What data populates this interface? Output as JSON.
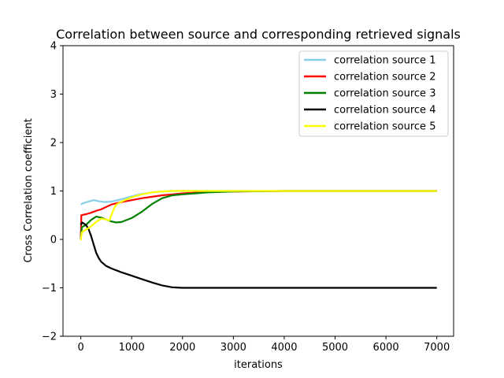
{
  "chart_data": {
    "type": "line",
    "title": "Correlation between source and corresponding retrieved signals",
    "xlabel": "iterations",
    "ylabel": "Cross Correlation coefficient",
    "xlim": [
      -350,
      7330
    ],
    "ylim": [
      -2,
      4
    ],
    "xticks": [
      0,
      1000,
      2000,
      3000,
      4000,
      5000,
      6000,
      7000
    ],
    "yticks": [
      -2,
      -1,
      0,
      1,
      2,
      3,
      4
    ],
    "grid": false,
    "legend_position": "top-right",
    "series": [
      {
        "name": "correlation source 1",
        "color": "#87ceeb",
        "x": [
          0,
          50,
          150,
          250,
          350,
          450,
          600,
          800,
          1000,
          1200,
          1400,
          1600,
          1800,
          2000,
          2500,
          3000,
          4000,
          5000,
          6000,
          7000
        ],
        "y": [
          0.72,
          0.75,
          0.78,
          0.81,
          0.79,
          0.77,
          0.78,
          0.83,
          0.89,
          0.94,
          0.97,
          0.99,
          1.0,
          1.0,
          1.0,
          1.0,
          1.0,
          1.0,
          1.0,
          1.0
        ]
      },
      {
        "name": "correlation source 2",
        "color": "#ff0000",
        "x": [
          0,
          10,
          100,
          200,
          300,
          400,
          500,
          600,
          800,
          1000,
          1200,
          1400,
          1600,
          1800,
          2000,
          2500,
          3000,
          4000,
          5000,
          6000,
          7000
        ],
        "y": [
          0.0,
          0.5,
          0.52,
          0.55,
          0.59,
          0.62,
          0.67,
          0.72,
          0.77,
          0.81,
          0.85,
          0.88,
          0.91,
          0.93,
          0.95,
          0.98,
          0.99,
          1.0,
          1.0,
          1.0,
          1.0
        ]
      },
      {
        "name": "correlation source 3",
        "color": "#008000",
        "x": [
          0,
          20,
          100,
          200,
          300,
          400,
          500,
          600,
          700,
          800,
          1000,
          1200,
          1400,
          1600,
          1800,
          2000,
          2500,
          3000,
          4000,
          5000,
          6000,
          7000
        ],
        "y": [
          0.0,
          0.25,
          0.3,
          0.4,
          0.47,
          0.45,
          0.41,
          0.37,
          0.35,
          0.36,
          0.44,
          0.57,
          0.73,
          0.85,
          0.91,
          0.93,
          0.97,
          0.99,
          1.0,
          1.0,
          1.0,
          1.0
        ]
      },
      {
        "name": "correlation source 4",
        "color": "#000000",
        "x": [
          0,
          30,
          100,
          150,
          200,
          250,
          300,
          350,
          400,
          500,
          600,
          800,
          1000,
          1200,
          1400,
          1600,
          1800,
          2000,
          2500,
          3000,
          4000,
          5000,
          6000,
          7000
        ],
        "y": [
          0.3,
          0.35,
          0.3,
          0.22,
          0.08,
          -0.1,
          -0.27,
          -0.38,
          -0.46,
          -0.55,
          -0.6,
          -0.68,
          -0.75,
          -0.82,
          -0.89,
          -0.95,
          -0.99,
          -1.0,
          -1.0,
          -1.0,
          -1.0,
          -1.0,
          -1.0,
          -1.0
        ]
      },
      {
        "name": "correlation source 5",
        "color": "#ffff00",
        "x": [
          0,
          20,
          100,
          200,
          300,
          400,
          500,
          560,
          600,
          650,
          700,
          800,
          1000,
          1200,
          1400,
          1600,
          1800,
          2000,
          2500,
          3000,
          4000,
          5000,
          6000,
          7000
        ],
        "y": [
          -0.02,
          0.15,
          0.2,
          0.27,
          0.36,
          0.43,
          0.41,
          0.39,
          0.5,
          0.63,
          0.72,
          0.78,
          0.87,
          0.93,
          0.97,
          0.99,
          1.0,
          1.0,
          1.0,
          1.0,
          1.0,
          1.0,
          1.0,
          1.0
        ]
      }
    ]
  }
}
